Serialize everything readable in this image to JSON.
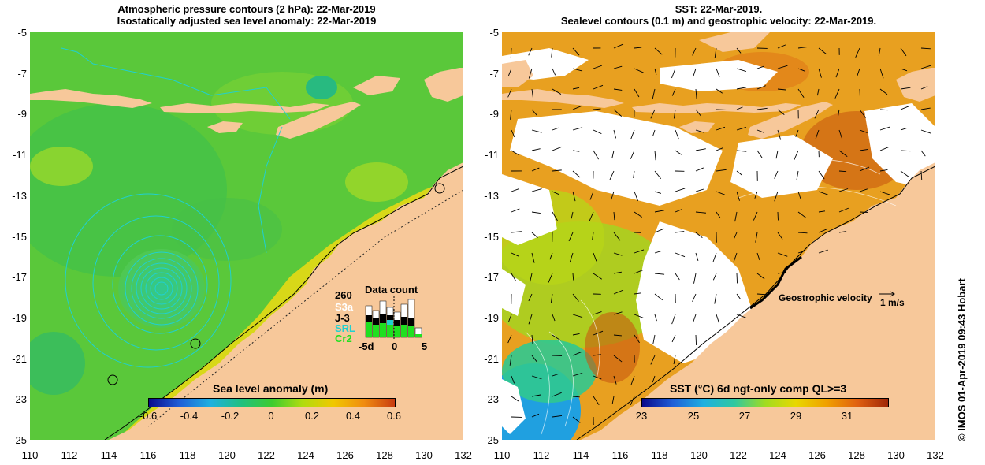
{
  "left_panel": {
    "title_line1": "Atmospheric pressure contours (2 hPa): 22-Mar-2019",
    "title_line2": "Isostatically adjusted sea level anomaly: 22-Mar-2019",
    "colorbar": {
      "title": "Sea level anomaly (m)",
      "ticks": [
        "-0.6",
        "-0.4",
        "-0.2",
        "0",
        "0.2",
        "0.4",
        "0.6"
      ],
      "colors": [
        "#0a0a8c",
        "#1f5fd8",
        "#1fb0e0",
        "#20c080",
        "#3ccc30",
        "#b0dc10",
        "#f0c800",
        "#f08c10",
        "#c83c10"
      ]
    },
    "data_count": {
      "title": "Data count",
      "max_value": "260",
      "satellites": [
        {
          "name": "S3a",
          "color": "#ffffff"
        },
        {
          "name": "J-3",
          "color": "#000000"
        },
        {
          "name": "SRL",
          "color": "#20d0d0"
        },
        {
          "name": "Cr2",
          "color": "#20e020"
        }
      ],
      "x_ticks": [
        "-5d",
        "0",
        "5"
      ]
    }
  },
  "right_panel": {
    "title_line1": "SST: 22-Mar-2019.",
    "title_line2": "Sealevel contours (0.1 m) and geostrophic velocity: 22-Mar-2019.",
    "colorbar": {
      "title": "SST (°C) 6d ngt-only comp QL>=3",
      "ticks": [
        "23",
        "25",
        "27",
        "29",
        "31"
      ],
      "colors": [
        "#0a0a8c",
        "#1f5fd8",
        "#1fb0e0",
        "#30c8a0",
        "#a0dc20",
        "#e8d800",
        "#f0a000",
        "#e06010",
        "#a02808"
      ]
    },
    "velocity_legend": {
      "label": "Geostrophic velocity",
      "scale": "1 m/s"
    }
  },
  "axes": {
    "y_ticks": [
      "-5",
      "-7",
      "-9",
      "-11",
      "-13",
      "-15",
      "-17",
      "-19",
      "-21",
      "-23",
      "-25"
    ],
    "x_ticks": [
      "110",
      "112",
      "114",
      "116",
      "118",
      "120",
      "122",
      "124",
      "126",
      "128",
      "130",
      "132"
    ]
  },
  "credit": "© IMOS 01-Apr-2019 09:43 Hobart",
  "colors": {
    "land": "#f7c89a",
    "ocean_green": "#5cc83c",
    "sst_orange": "#e8a020",
    "white_cloud": "#ffffff"
  }
}
